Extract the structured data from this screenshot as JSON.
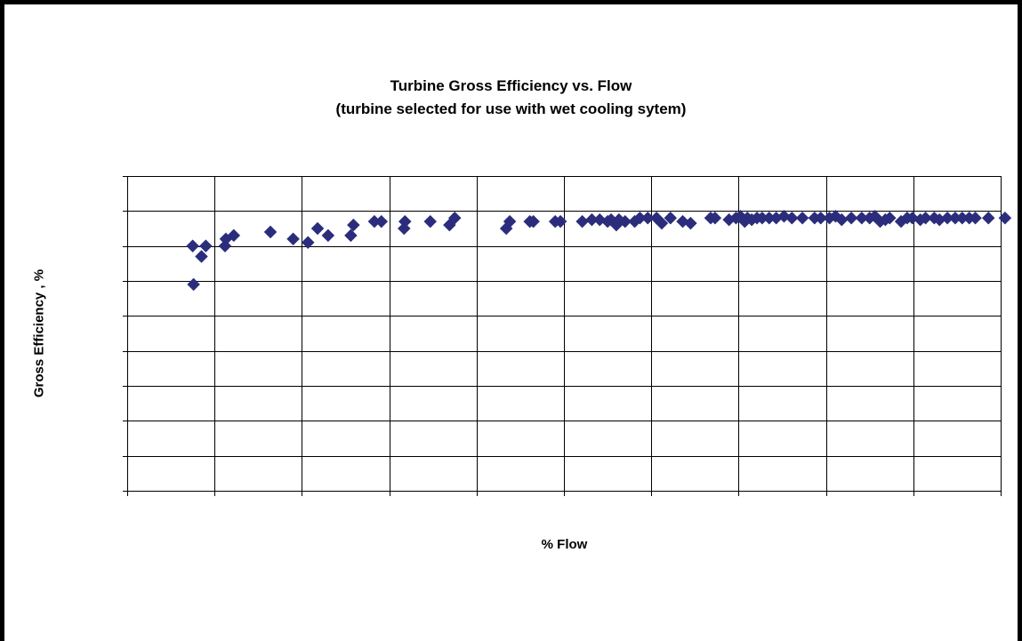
{
  "chart_data": {
    "type": "scatter",
    "title": "Turbine Gross Efficiency vs. Flow",
    "subtitle": "(turbine selected for use with wet cooling sytem)",
    "xlabel": "% Flow",
    "ylabel": "Gross Efficiency , %",
    "xlim": [
      0,
      100
    ],
    "ylim": [
      0,
      9
    ],
    "grid": true,
    "tick_labels_shown": false,
    "marker": "diamond",
    "color": "#2b2d7c",
    "series": [
      {
        "points": [
          [
            7.5,
            7.0
          ],
          [
            9.0,
            7.0
          ],
          [
            8.5,
            6.7
          ],
          [
            7.6,
            5.9
          ],
          [
            11.2,
            7.0
          ],
          [
            11.3,
            7.2
          ],
          [
            12.2,
            7.3
          ],
          [
            16.4,
            7.4
          ],
          [
            19.0,
            7.2
          ],
          [
            20.7,
            7.1
          ],
          [
            21.8,
            7.5
          ],
          [
            23.0,
            7.3
          ],
          [
            25.6,
            7.3
          ],
          [
            25.9,
            7.6
          ],
          [
            28.3,
            7.7
          ],
          [
            29.1,
            7.7
          ],
          [
            31.8,
            7.7
          ],
          [
            31.7,
            7.5
          ],
          [
            34.7,
            7.7
          ],
          [
            36.9,
            7.6
          ],
          [
            37.5,
            7.8
          ],
          [
            43.4,
            7.5
          ],
          [
            43.8,
            7.7
          ],
          [
            46.1,
            7.7
          ],
          [
            46.5,
            7.7
          ],
          [
            49.0,
            7.7
          ],
          [
            49.6,
            7.7
          ],
          [
            52.1,
            7.7
          ],
          [
            53.2,
            7.75
          ],
          [
            54.1,
            7.75
          ],
          [
            55.0,
            7.7
          ],
          [
            55.4,
            7.75
          ],
          [
            56.0,
            7.6
          ],
          [
            56.3,
            7.75
          ],
          [
            57.0,
            7.7
          ],
          [
            58.1,
            7.7
          ],
          [
            58.7,
            7.8
          ],
          [
            59.6,
            7.8
          ],
          [
            60.6,
            7.8
          ],
          [
            61.2,
            7.65
          ],
          [
            62.2,
            7.8
          ],
          [
            63.6,
            7.7
          ],
          [
            64.5,
            7.65
          ],
          [
            66.8,
            7.8
          ],
          [
            67.3,
            7.8
          ],
          [
            68.9,
            7.75
          ],
          [
            69.7,
            7.8
          ],
          [
            70.2,
            7.85
          ],
          [
            70.7,
            7.7
          ],
          [
            71.0,
            7.8
          ],
          [
            71.5,
            7.75
          ],
          [
            72.1,
            7.8
          ],
          [
            72.7,
            7.8
          ],
          [
            73.5,
            7.8
          ],
          [
            74.3,
            7.8
          ],
          [
            75.2,
            7.85
          ],
          [
            76.1,
            7.8
          ],
          [
            77.3,
            7.8
          ],
          [
            78.7,
            7.8
          ],
          [
            79.4,
            7.8
          ],
          [
            80.4,
            7.8
          ],
          [
            81.1,
            7.85
          ],
          [
            81.8,
            7.75
          ],
          [
            82.9,
            7.8
          ],
          [
            84.1,
            7.8
          ],
          [
            85.0,
            7.8
          ],
          [
            85.6,
            7.85
          ],
          [
            86.2,
            7.7
          ],
          [
            86.8,
            7.75
          ],
          [
            87.3,
            7.8
          ],
          [
            88.6,
            7.7
          ],
          [
            89.3,
            7.8
          ],
          [
            89.9,
            7.8
          ],
          [
            90.8,
            7.75
          ],
          [
            91.4,
            7.8
          ],
          [
            92.4,
            7.8
          ],
          [
            93.0,
            7.75
          ],
          [
            93.9,
            7.8
          ],
          [
            94.8,
            7.8
          ],
          [
            95.6,
            7.8
          ],
          [
            96.4,
            7.8
          ],
          [
            97.1,
            7.8
          ],
          [
            98.6,
            7.8
          ],
          [
            100.5,
            7.8
          ]
        ]
      }
    ]
  }
}
